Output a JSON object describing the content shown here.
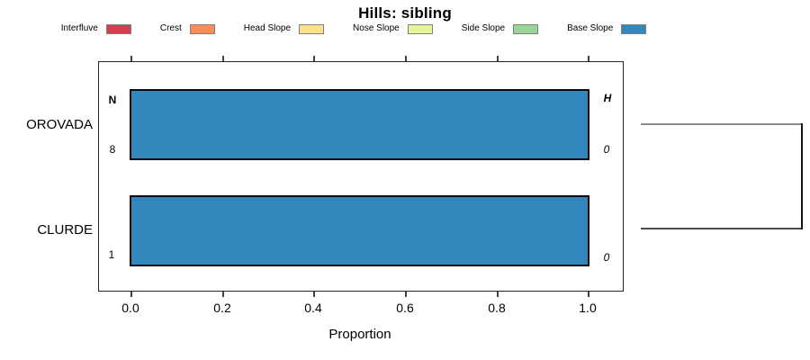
{
  "title": "Hills: sibling",
  "legend": {
    "items": [
      {
        "label": "Interfluve",
        "color": "#D53E4F"
      },
      {
        "label": "Crest",
        "color": "#FC8D59"
      },
      {
        "label": "Head Slope",
        "color": "#FEE08B"
      },
      {
        "label": "Nose Slope",
        "color": "#E6F598"
      },
      {
        "label": "Side Slope",
        "color": "#99D594"
      },
      {
        "label": "Base Slope",
        "color": "#3288BD"
      }
    ]
  },
  "axis": {
    "ticks": [
      "0.0",
      "0.2",
      "0.4",
      "0.6",
      "0.8",
      "1.0"
    ],
    "xlabel": "Proportion"
  },
  "annotations": {
    "n_header": "N",
    "h_header": "H"
  },
  "chart_data": {
    "type": "bar",
    "orientation": "horizontal",
    "title": "Hills: sibling",
    "xlabel": "Proportion",
    "xlim": [
      0,
      1
    ],
    "grid": false,
    "legend_position": "top",
    "classes": [
      "Interfluve",
      "Crest",
      "Head Slope",
      "Nose Slope",
      "Side Slope",
      "Base Slope"
    ],
    "class_colors": [
      "#D53E4F",
      "#FC8D59",
      "#FEE08B",
      "#E6F598",
      "#99D594",
      "#3288BD"
    ],
    "categories": [
      "OROVADA",
      "CLURDE"
    ],
    "rows": [
      {
        "label": "OROVADA",
        "n": 8,
        "h": "0",
        "segments": [
          {
            "class": "Base Slope",
            "proportion": 1.0
          }
        ]
      },
      {
        "label": "CLURDE",
        "n": 1,
        "h": "0",
        "segments": [
          {
            "class": "Base Slope",
            "proportion": 1.0
          }
        ]
      }
    ],
    "dendrogram": {
      "joined_rows": [
        "OROVADA",
        "CLURDE"
      ]
    }
  }
}
